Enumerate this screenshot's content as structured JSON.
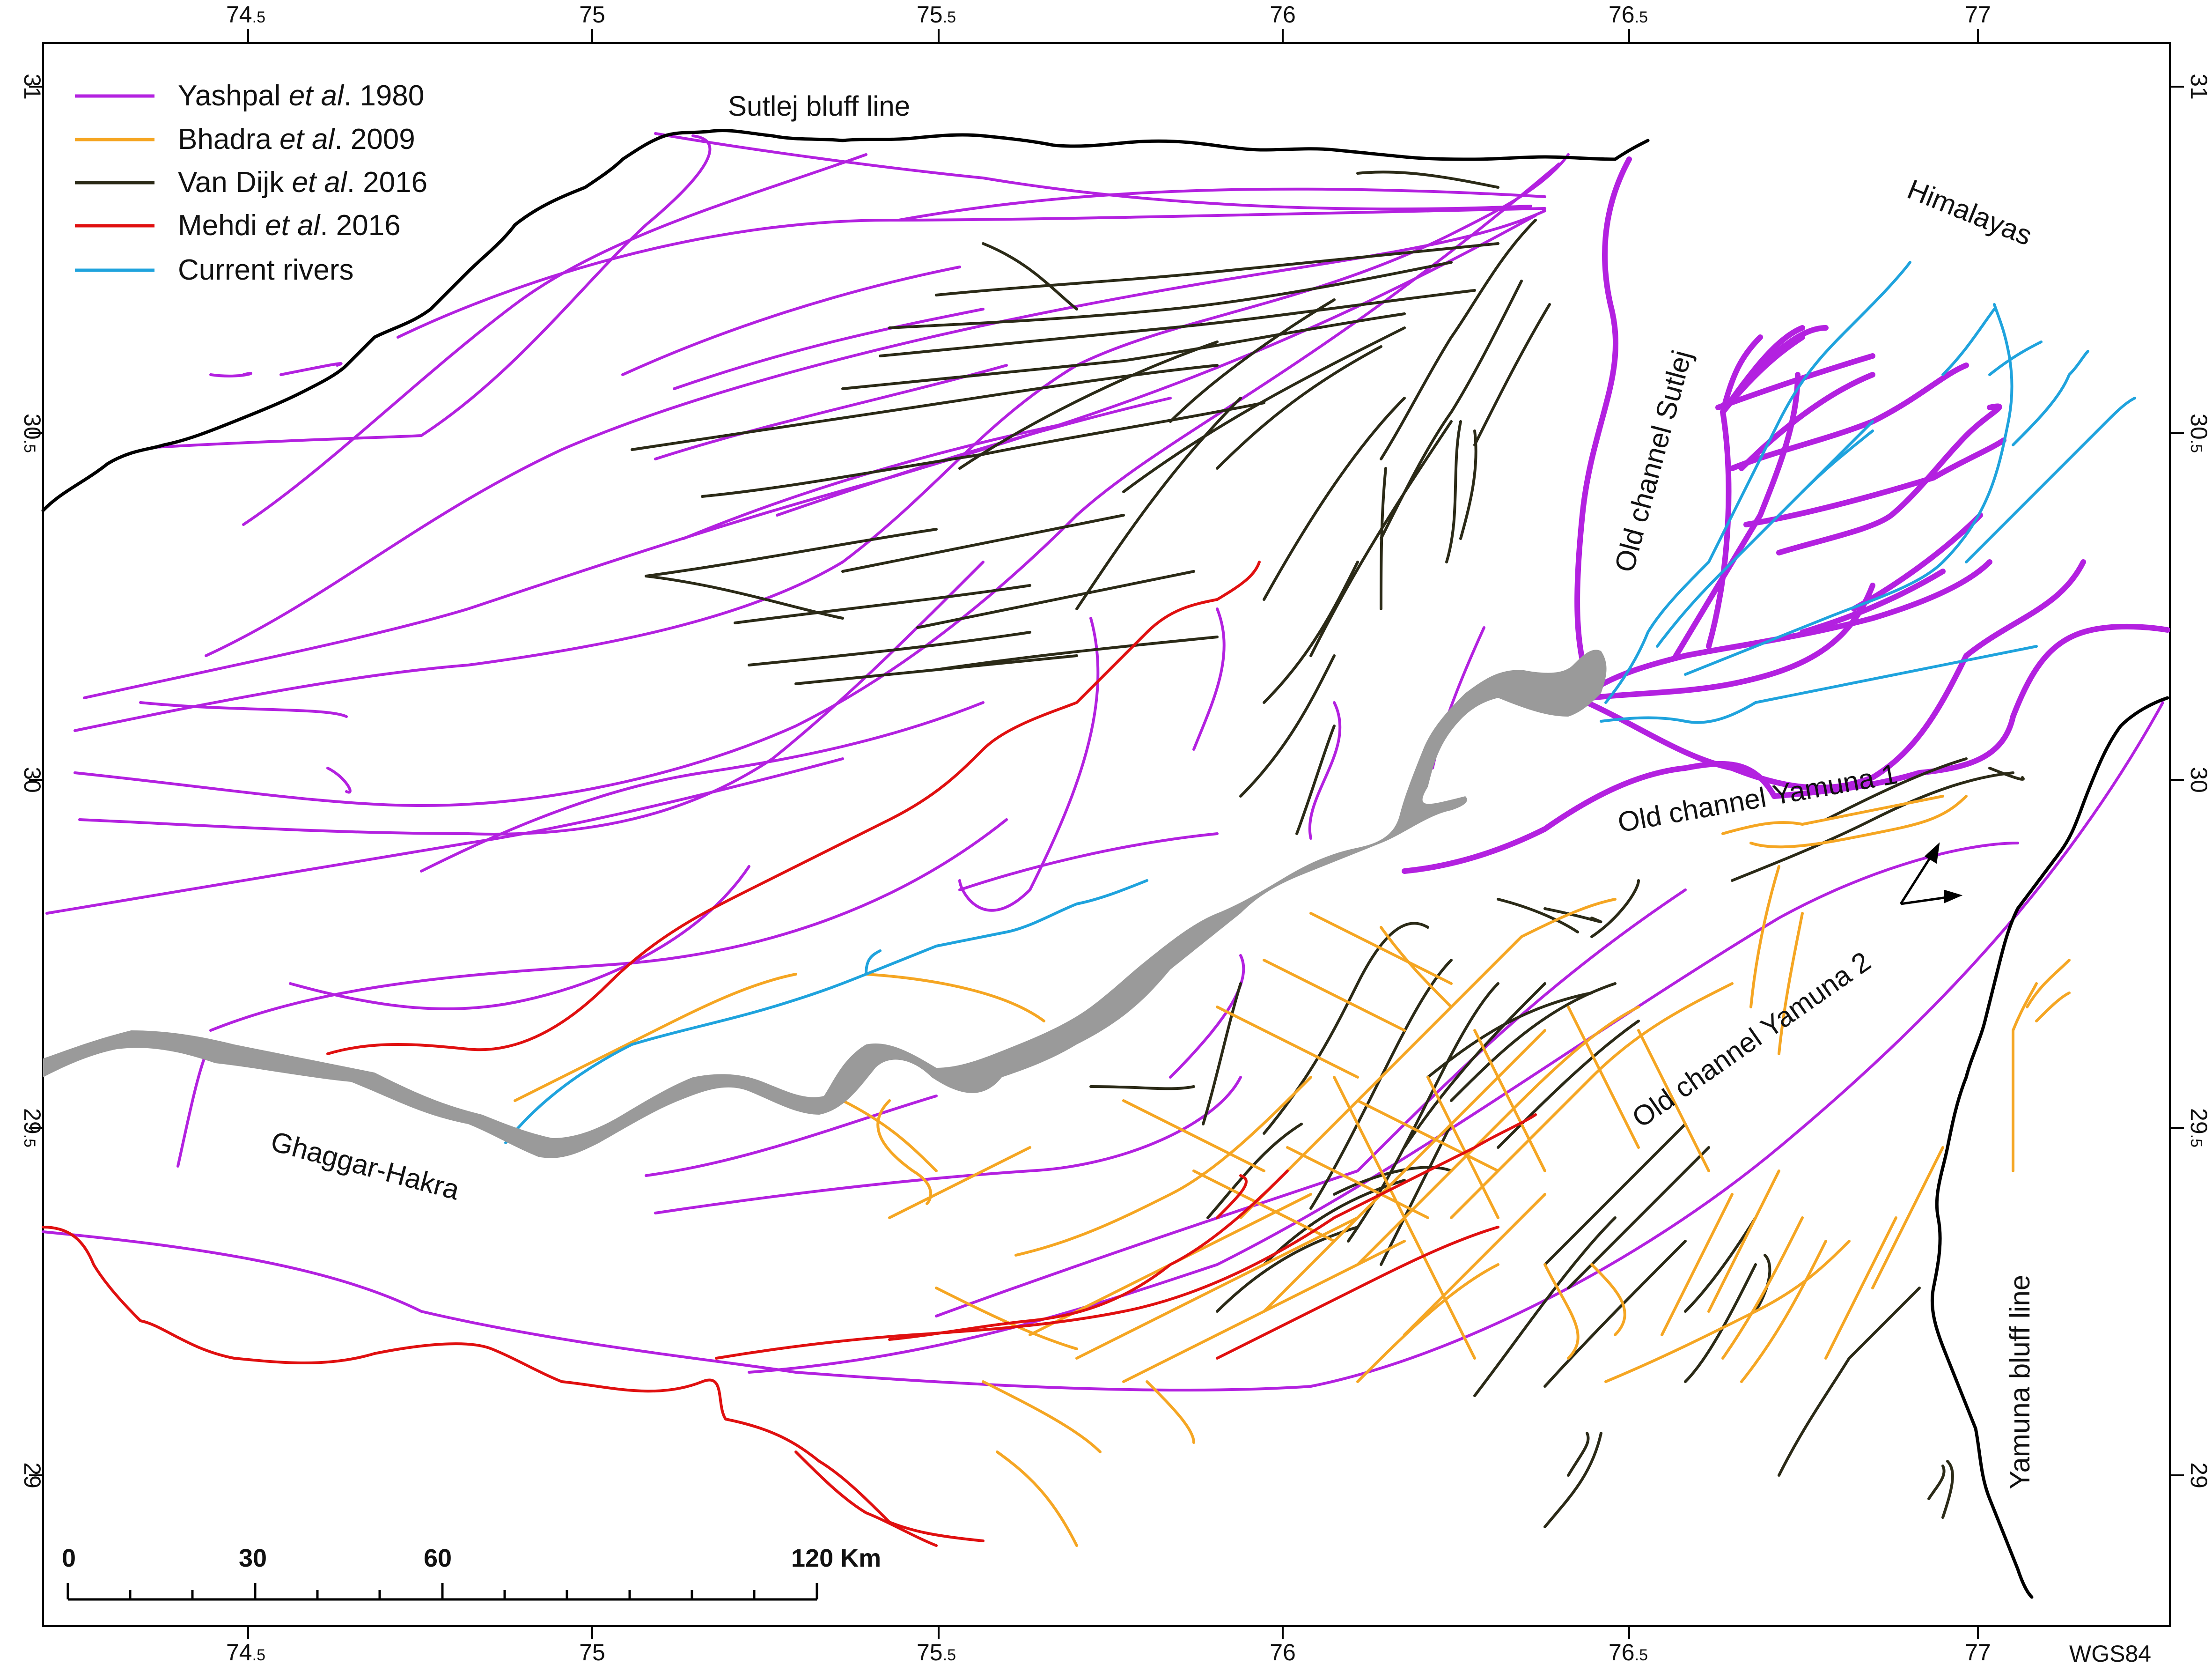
{
  "legend": {
    "items": [
      {
        "name": "Yashpal",
        "etal": "et al",
        "year": ". 1980",
        "color": "#b321e0"
      },
      {
        "name": "Bhadra",
        "etal": "et al",
        "year": ". 2009",
        "color": "#f5a623"
      },
      {
        "name": "Van Dijk",
        "etal": "et al",
        "year": ". 2016",
        "color": "#2b2a17"
      },
      {
        "name": "Mehdi",
        "etal": "et al",
        "year": ". 2016",
        "color": "#e01010"
      },
      {
        "name": "Current rivers",
        "etal": "",
        "year": "",
        "color": "#1fa3dd"
      }
    ]
  },
  "axes": {
    "x_ticks": [
      {
        "main": "74",
        "sub": ".5"
      },
      {
        "main": "75",
        "sub": ""
      },
      {
        "main": "75",
        "sub": ".5"
      },
      {
        "main": "76",
        "sub": ""
      },
      {
        "main": "76",
        "sub": ".5"
      },
      {
        "main": "77",
        "sub": ""
      }
    ],
    "y_ticks": [
      {
        "main": "31",
        "sub": ""
      },
      {
        "main": "30",
        "sub": ".5"
      },
      {
        "main": "30",
        "sub": ""
      },
      {
        "main": "29",
        "sub": ".5"
      },
      {
        "main": "29",
        "sub": ""
      }
    ],
    "datum": "WGS84"
  },
  "labels": {
    "sutlej_bluff": "Sutlej bluff line",
    "himalayas": "Himalayas",
    "old_sutlej": "Old channel Sutlej",
    "old_yamuna1": "Old channel Yamuna 1",
    "old_yamuna2": "Old channel Yamuna 2",
    "yamuna_bluff": "Yamuna bluff line",
    "ghaggar": "Ghaggar-Hakra"
  },
  "scale_bar": {
    "ticks": [
      "0",
      "30",
      "60",
      "120 Km"
    ]
  },
  "colors": {
    "yashpal": "#b321e0",
    "bhadra": "#f5a623",
    "vandijk": "#2b2a17",
    "mehdi": "#e01010",
    "rivers": "#1fa3dd",
    "bluff": "#000000",
    "ghaggar_fill": "#9a9a9a"
  }
}
